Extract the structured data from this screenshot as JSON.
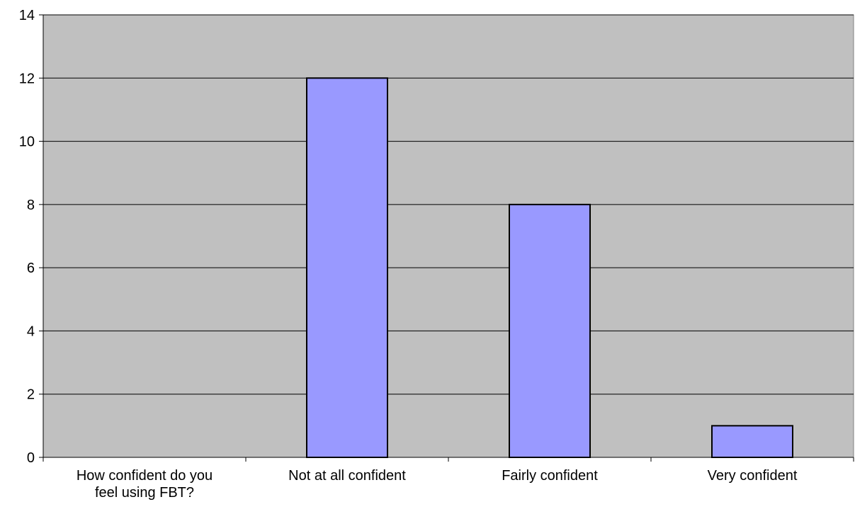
{
  "chart_data": {
    "type": "bar",
    "title": "",
    "xlabel": "",
    "ylabel": "",
    "categories": [
      "How confident do you feel using FBT?",
      "Not at all confident",
      "Fairly confident",
      "Very confident"
    ],
    "category_lines": [
      [
        "How confident do you",
        "feel using FBT?"
      ],
      [
        "Not at all confident"
      ],
      [
        "Fairly confident"
      ],
      [
        "Very confident"
      ]
    ],
    "values": [
      0,
      12,
      8,
      1
    ],
    "ylim": [
      0,
      14
    ],
    "yticks": [
      "0",
      "2",
      "4",
      "6",
      "8",
      "10",
      "12",
      "14"
    ],
    "grid": true,
    "legend": "none",
    "colors": {
      "plot_background": "#c0c0c0",
      "bar_fill": "#9999ff",
      "bar_stroke": "#000000",
      "gridline": "#000000"
    }
  }
}
